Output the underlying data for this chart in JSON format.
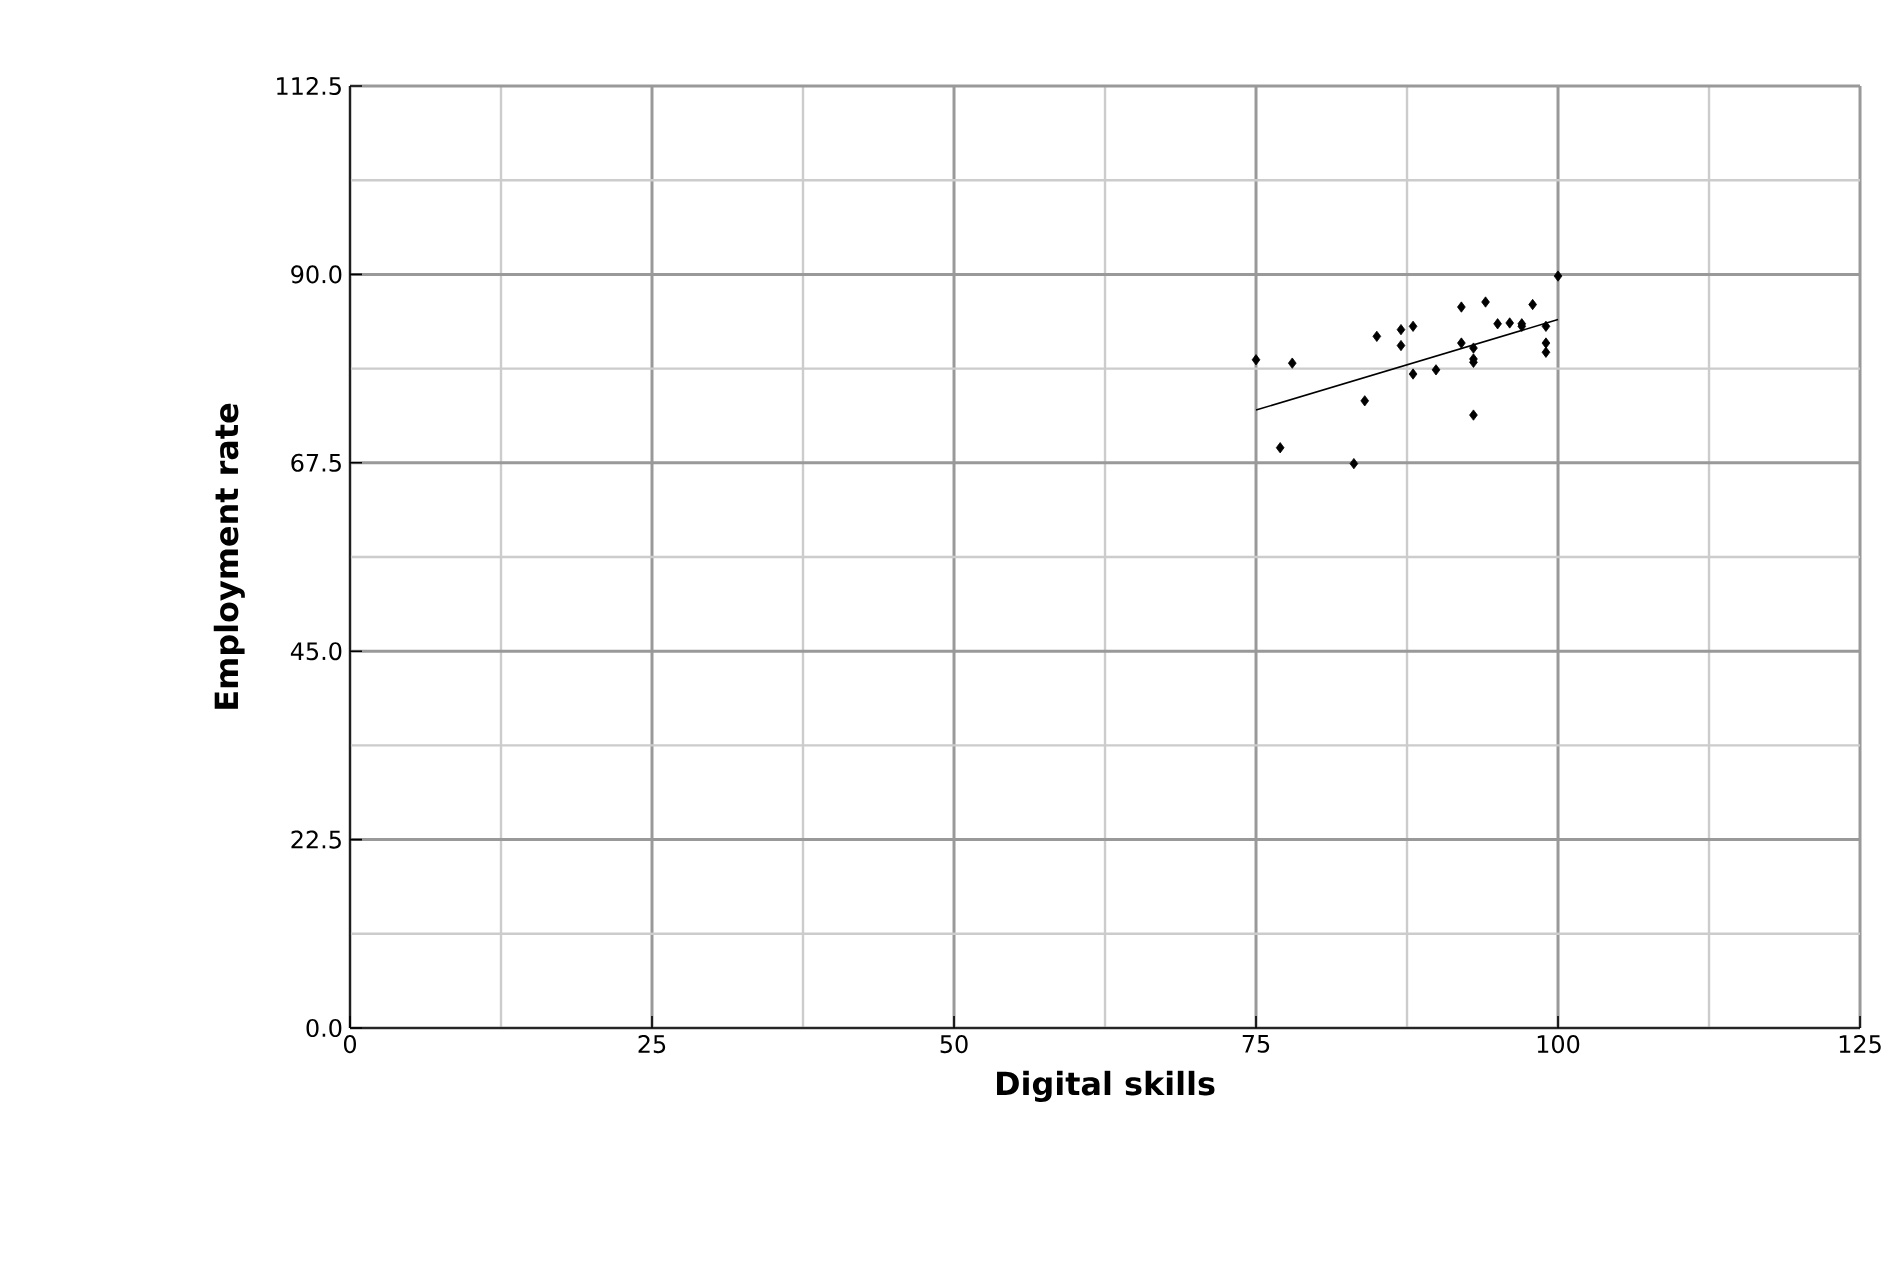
{
  "chart_data": {
    "type": "scatter",
    "xlabel": "Digital skills",
    "ylabel": "Employment rate",
    "xlim": [
      0,
      125
    ],
    "xticks": [
      0,
      25,
      50,
      75,
      100,
      125
    ],
    "ylim": [
      0,
      112.5
    ],
    "yticks": [
      {
        "value": 0,
        "label": "0.0"
      },
      {
        "value": 22.5,
        "label": "22.5"
      },
      {
        "value": 45,
        "label": "45.0"
      },
      {
        "value": 67.5,
        "label": "67.5"
      },
      {
        "value": 90,
        "label": "90.0"
      },
      {
        "value": 112.5,
        "label": "112.5"
      }
    ],
    "grid": true,
    "marker": "diamond",
    "series": [
      {
        "color": "#000000",
        "x": [
          75,
          77,
          78,
          84,
          83.1,
          85,
          87,
          87,
          88,
          88,
          89.9,
          92,
          92,
          93,
          93,
          93,
          93,
          94,
          95,
          96,
          97,
          97,
          97.9,
          99,
          99,
          99,
          100
        ],
        "values": [
          79.8,
          69.3,
          79.4,
          74.9,
          67.4,
          82.6,
          83.4,
          81.5,
          83.8,
          78.1,
          78.6,
          86.1,
          81.8,
          81.2,
          79.9,
          79.5,
          73.2,
          86.7,
          84.1,
          84.2,
          83.8,
          84.1,
          86.4,
          83.8,
          81.8,
          80.7,
          89.8
        ]
      },
      {
        "type": "line",
        "color": "#000000",
        "marker": "none",
        "x": [
          75,
          100
        ],
        "values": [
          73.8,
          84.6
        ]
      }
    ]
  }
}
